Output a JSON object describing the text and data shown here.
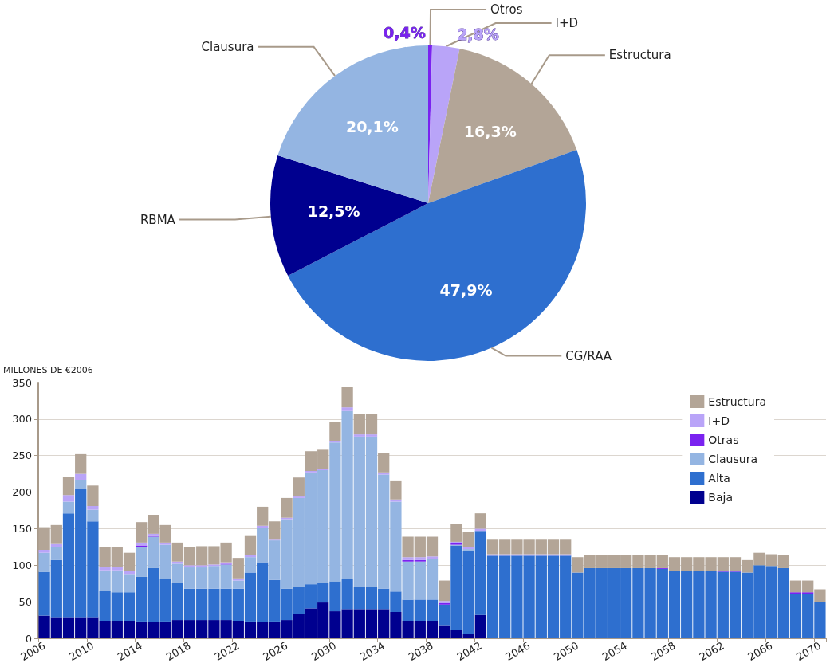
{
  "chart_data": [
    {
      "type": "pie",
      "categories": [
        "Otros",
        "I+D",
        "Estructura",
        "CG/RAA",
        "RBMA",
        "Clausura"
      ],
      "values": [
        0.4,
        2.8,
        16.3,
        47.9,
        12.5,
        20.1
      ],
      "colors": [
        "#7a22f0",
        "#b9a4f8",
        "#b3a597",
        "#2e6fcf",
        "#00008f",
        "#94b5e2"
      ],
      "value_labels": [
        "0,4%",
        "2,8%",
        "16,3%",
        "47,9%",
        "12,5%",
        "20,1%"
      ]
    },
    {
      "type": "bar",
      "stacked": true,
      "ylabel": "MILLONES DE €2006",
      "ylim": [
        0,
        350
      ],
      "yticks": [
        0,
        50,
        100,
        150,
        200,
        250,
        300,
        350
      ],
      "grid": "y",
      "legend": "top right",
      "categories": [
        "2006",
        null,
        null,
        null,
        "2010",
        null,
        null,
        null,
        "2014",
        null,
        null,
        null,
        "2018",
        null,
        null,
        null,
        "2022",
        null,
        null,
        null,
        "2026",
        null,
        null,
        null,
        "2030",
        null,
        null,
        null,
        "2034",
        null,
        null,
        null,
        "2038",
        null,
        null,
        null,
        "2042",
        null,
        null,
        null,
        "2046",
        null,
        null,
        null,
        "2050",
        null,
        null,
        null,
        "2054",
        null,
        null,
        null,
        "2058",
        null,
        null,
        null,
        "2062",
        null,
        null,
        null,
        "2066",
        null,
        null,
        null,
        "2070"
      ],
      "series": [
        {
          "name": "Baja",
          "color": "#00008f",
          "values": [
            31,
            29,
            29,
            29,
            29,
            24,
            24,
            24,
            23,
            22,
            23,
            25,
            25,
            25,
            25,
            25,
            24,
            23,
            23,
            23,
            25,
            33,
            41,
            49,
            37,
            40,
            40,
            40,
            40,
            36,
            24,
            24,
            24,
            18,
            12,
            6,
            32,
            0,
            0,
            0,
            0,
            0,
            0,
            0,
            0,
            0,
            0,
            0,
            0,
            0,
            0,
            0,
            0,
            0,
            0,
            0,
            0,
            0,
            0,
            0,
            0,
            0,
            0,
            0,
            0
          ]
        },
        {
          "name": "Alta",
          "color": "#2e6fcf",
          "values": [
            60,
            78,
            142,
            176,
            131,
            41,
            39,
            39,
            61,
            74,
            58,
            51,
            43,
            43,
            43,
            43,
            44,
            67,
            81,
            57,
            43,
            37,
            33,
            27,
            41,
            41,
            30,
            30,
            28,
            28,
            29,
            29,
            29,
            28,
            115,
            114,
            115,
            113,
            113,
            113,
            113,
            113,
            113,
            113,
            90,
            96,
            96,
            96,
            96,
            96,
            96,
            95,
            92,
            92,
            92,
            92,
            91,
            91,
            90,
            100,
            99,
            96,
            61,
            61,
            50
          ]
        },
        {
          "name": "Clausura",
          "color": "#94b5e2",
          "values": [
            26,
            18,
            16,
            12,
            16,
            28,
            30,
            25,
            41,
            43,
            47,
            26,
            29,
            29,
            31,
            33,
            11,
            21,
            47,
            54,
            95,
            122,
            153,
            154,
            190,
            230,
            206,
            206,
            156,
            123,
            52,
            52,
            55,
            0,
            1,
            2,
            0,
            0,
            0,
            0,
            0,
            0,
            0,
            0,
            0,
            0,
            0,
            0,
            0,
            0,
            0,
            0,
            0,
            0,
            0,
            0,
            0,
            0,
            0,
            0,
            0,
            0,
            0,
            0,
            0
          ]
        },
        {
          "name": "Otras",
          "color": "#7a22f0",
          "values": [
            0,
            0,
            0,
            0,
            0,
            0,
            0,
            0,
            2,
            2,
            0,
            0,
            0,
            0,
            0,
            1,
            0,
            0,
            0,
            0,
            0,
            0,
            0,
            0,
            0,
            0,
            0,
            0,
            0,
            0,
            2,
            2,
            0,
            2,
            2,
            0,
            0,
            0,
            0,
            0,
            0,
            0,
            0,
            0,
            0,
            0,
            0,
            0,
            0,
            0,
            0,
            1,
            0,
            0,
            0,
            0,
            1,
            1,
            0,
            0,
            0,
            0,
            2,
            2,
            0
          ]
        },
        {
          "name": "I+D",
          "color": "#b9a4f8",
          "values": [
            4,
            4,
            9,
            8,
            5,
            4,
            4,
            4,
            4,
            2,
            3,
            3,
            3,
            3,
            2,
            2,
            3,
            3,
            3,
            2,
            2,
            2,
            2,
            2,
            2,
            5,
            3,
            3,
            3,
            3,
            4,
            4,
            4,
            3,
            2,
            3,
            3,
            2,
            2,
            2,
            2,
            2,
            2,
            2,
            0,
            0,
            0,
            0,
            0,
            0,
            0,
            0,
            0,
            0,
            0,
            0,
            0,
            0,
            0,
            0,
            0,
            0,
            0,
            0,
            0
          ]
        },
        {
          "name": "Estructura",
          "color": "#b3a597",
          "values": [
            31,
            26,
            25,
            27,
            28,
            28,
            28,
            25,
            28,
            26,
            24,
            26,
            25,
            26,
            25,
            27,
            28,
            27,
            26,
            24,
            27,
            26,
            27,
            26,
            26,
            28,
            28,
            28,
            27,
            26,
            28,
            28,
            27,
            28,
            24,
            20,
            21,
            21,
            21,
            21,
            21,
            21,
            21,
            21,
            21,
            18,
            18,
            18,
            18,
            18,
            18,
            18,
            19,
            19,
            19,
            19,
            19,
            19,
            17,
            17,
            16,
            18,
            16,
            16,
            17
          ]
        }
      ]
    }
  ]
}
